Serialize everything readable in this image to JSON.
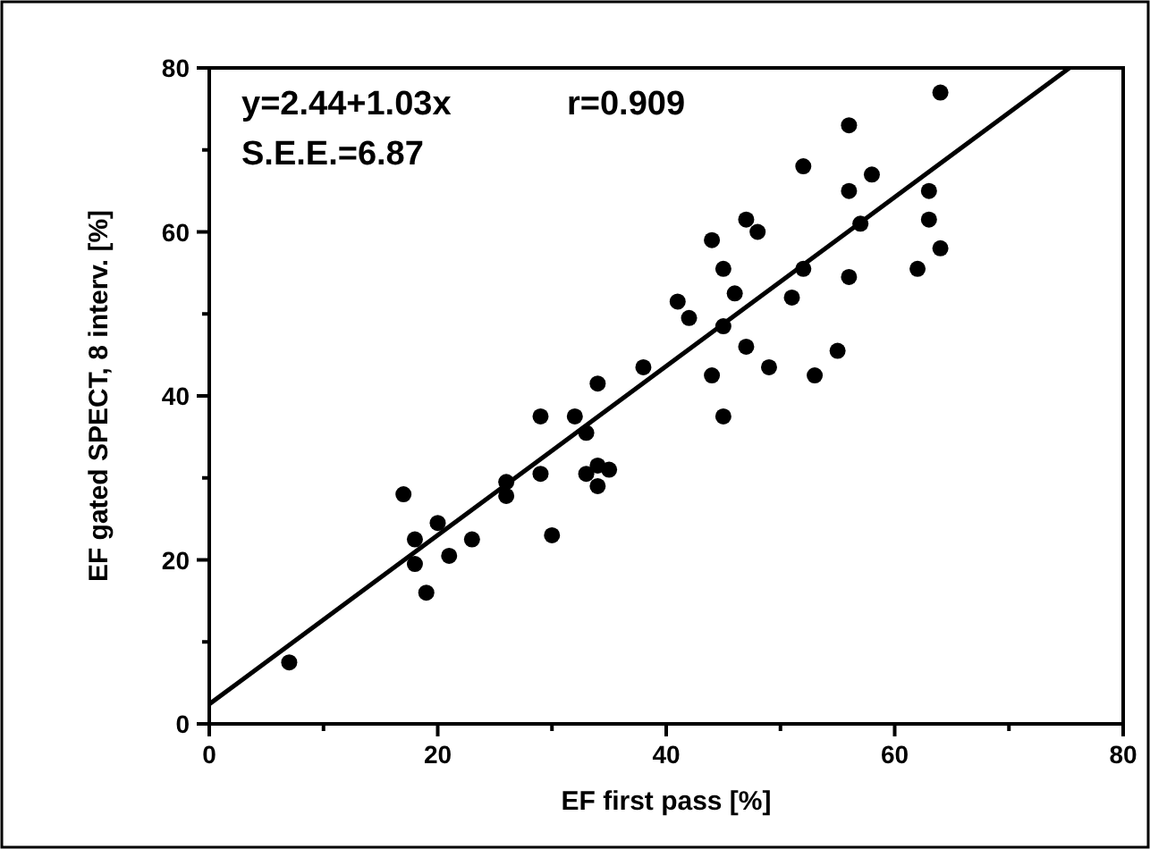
{
  "chart_data": {
    "type": "scatter",
    "xlabel": "EF first pass [%]",
    "ylabel": "EF gated SPECT, 8 interv. [%]",
    "annotations": [
      "y=2.44+1.03x",
      "r=0.909",
      "S.E.E.=6.87"
    ],
    "xlim": [
      0,
      80
    ],
    "ylim": [
      0,
      80
    ],
    "xticks": [
      0,
      {
        "value": 10,
        "label": null
      },
      20,
      {
        "value": 30,
        "label": null
      },
      40,
      {
        "value": 50,
        "label": null
      },
      60,
      {
        "value": 70,
        "label": null
      },
      80
    ],
    "yticks": [
      0,
      {
        "value": 10,
        "label": null
      },
      20,
      {
        "value": 30,
        "label": null
      },
      40,
      {
        "value": 50,
        "label": null
      },
      60,
      {
        "value": 70,
        "label": null
      },
      80
    ],
    "grid": false,
    "series": [
      {
        "marker": "circle",
        "color": "#000000",
        "x": [
          7,
          17,
          18,
          18,
          19,
          20,
          21,
          23,
          26,
          26,
          29,
          29,
          30,
          32,
          33,
          33,
          34,
          34,
          34,
          35,
          38,
          41,
          42,
          44,
          44,
          45,
          45,
          45,
          46,
          47,
          47,
          48,
          49,
          51,
          52,
          52,
          53,
          55,
          56,
          56,
          56,
          57,
          58,
          62,
          63,
          63,
          64,
          64
        ],
        "values": [
          7.5,
          28,
          22.5,
          19.5,
          16,
          24.5,
          20.5,
          22.5,
          29.5,
          27.8,
          37.5,
          30.5,
          23,
          37.5,
          35.5,
          30.5,
          41.5,
          29,
          31.5,
          31,
          43.5,
          51.5,
          49.5,
          59,
          42.5,
          55.5,
          37.5,
          48.5,
          52.5,
          61.5,
          46,
          60,
          43.5,
          52,
          68,
          55.5,
          42.5,
          45.5,
          73,
          65,
          54.5,
          61,
          67,
          55.5,
          65,
          61.5,
          77,
          58
        ]
      },
      {
        "type": "line",
        "color": "#000000",
        "x": [
          0,
          75.3
        ],
        "values": [
          2.4,
          80
        ],
        "line_style": "solid"
      }
    ]
  }
}
